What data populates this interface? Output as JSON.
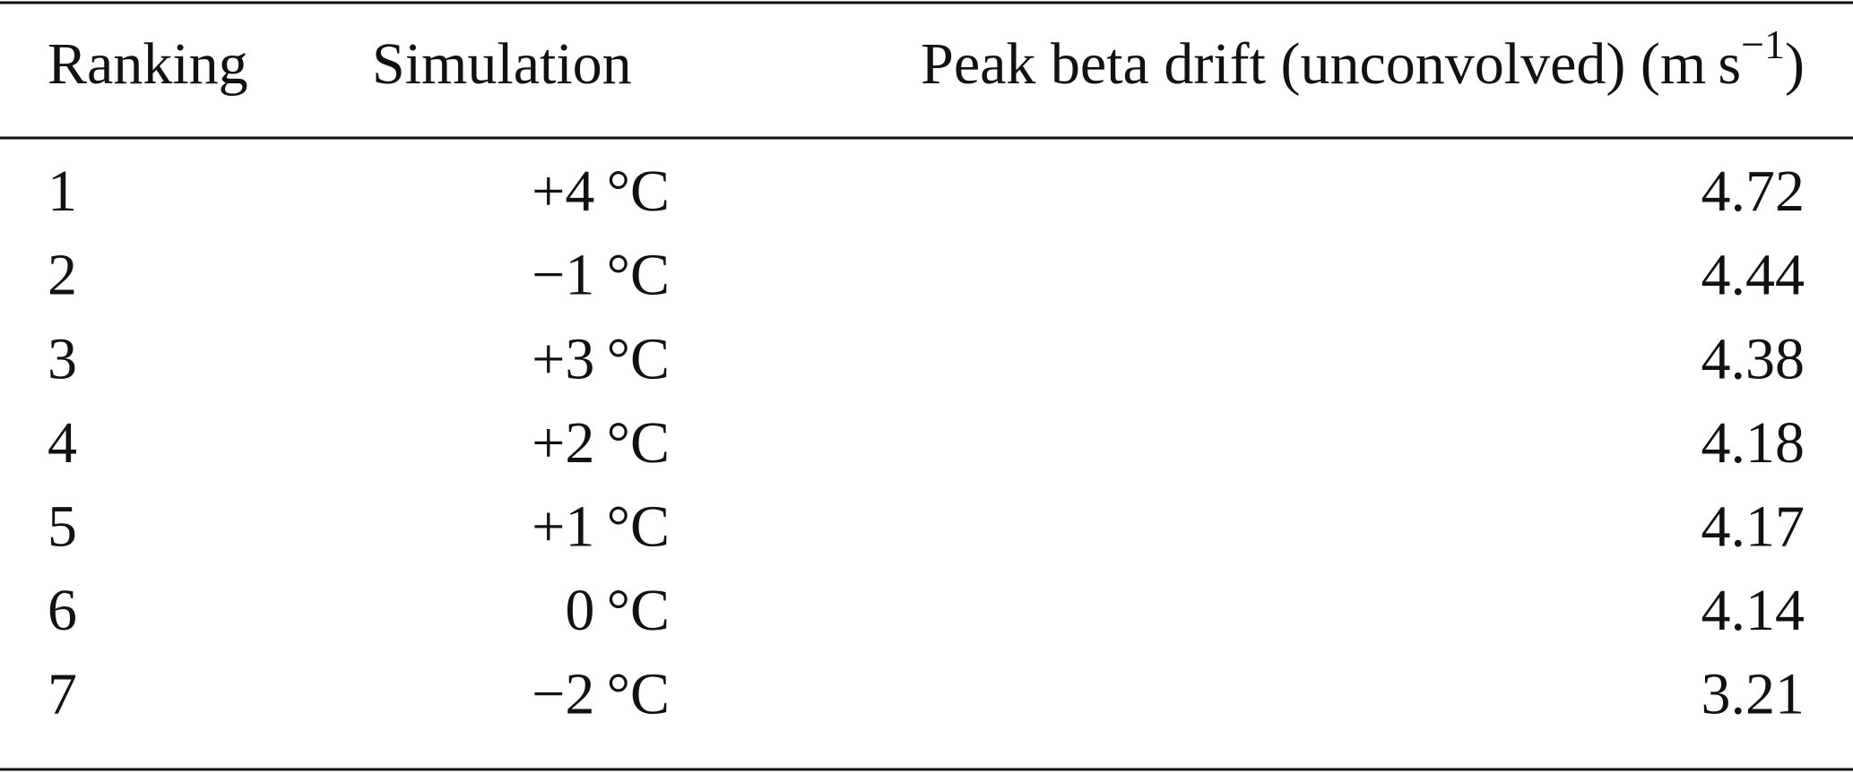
{
  "table": {
    "header": {
      "ranking": "Ranking",
      "simulation": "Simulation",
      "peak": "Peak beta drift (unconvolved) (m s",
      "peak_sup": "−1",
      "peak_close": ")"
    },
    "rows": [
      [
        1,
        "+4 °C",
        4.72
      ],
      [
        2,
        "−1 °C",
        4.44
      ],
      [
        3,
        "+3 °C",
        4.38
      ],
      [
        4,
        "+2 °C",
        4.18
      ],
      [
        5,
        "+1 °C",
        4.17
      ],
      [
        6,
        "0 °C",
        4.14
      ],
      [
        7,
        "−2 °C",
        3.21
      ]
    ]
  }
}
